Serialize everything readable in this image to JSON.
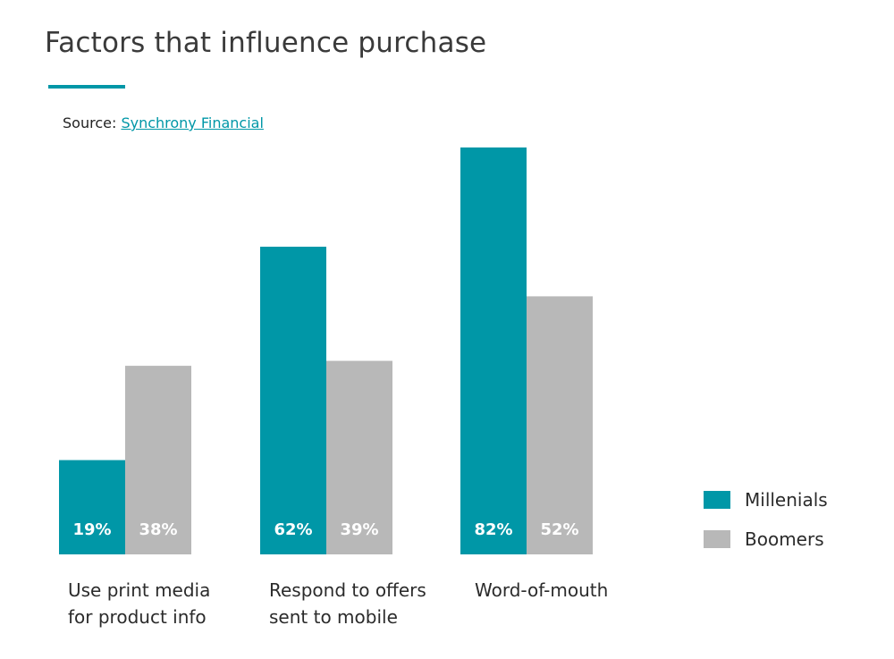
{
  "header": {
    "title": "Factors that influence purchase",
    "source_prefix": "Source: ",
    "source_link": "Synchrony Financial"
  },
  "colors": {
    "accent": "#0097a7",
    "millenials": "#0097a7",
    "boomers": "#b8b8b8",
    "value_text": "#ffffff",
    "link": "#0097a7"
  },
  "chart_data": {
    "type": "bar",
    "title": "Factors that influence purchase",
    "categories": [
      [
        "Use print media",
        "for product info"
      ],
      [
        "Respond to offers",
        "sent to mobile"
      ],
      [
        "Word-of-mouth"
      ]
    ],
    "series": [
      {
        "name": "Millenials",
        "values": [
          19,
          62,
          82
        ],
        "labels": [
          "19%",
          "62%",
          "82%"
        ]
      },
      {
        "name": "Boomers",
        "values": [
          38,
          39,
          52
        ],
        "labels": [
          "38%",
          "39%",
          "52%"
        ]
      }
    ],
    "ylim": [
      0,
      100
    ],
    "grid": false,
    "legend": "bottom-right"
  }
}
